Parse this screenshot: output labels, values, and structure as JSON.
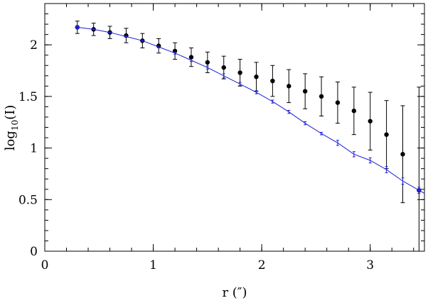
{
  "chart_data": {
    "type": "scatter",
    "xlabel": "r (″)",
    "ylabel": {
      "prefix": "log",
      "sub": "10",
      "suffix": "(I)"
    },
    "xlim": [
      0,
      3.5
    ],
    "ylim": [
      0,
      2.4
    ],
    "x_ticks": [
      0,
      1,
      2,
      3
    ],
    "y_ticks": [
      0,
      0.5,
      1,
      1.5,
      2
    ],
    "x_tick_labels": [
      "0",
      "1",
      "2",
      "3"
    ],
    "y_tick_labels": [
      "0",
      "0.5",
      "1",
      "1.5",
      "2"
    ],
    "x_minor_step": 0.2,
    "y_minor_step": 0.1,
    "grid": false,
    "series": [
      {
        "style": "points-with-errorbars",
        "color": "#000000",
        "points": [
          {
            "x": 0.3,
            "y": 2.17,
            "err": 0.06
          },
          {
            "x": 0.45,
            "y": 2.15,
            "err": 0.06
          },
          {
            "x": 0.6,
            "y": 2.12,
            "err": 0.06
          },
          {
            "x": 0.75,
            "y": 2.09,
            "err": 0.07
          },
          {
            "x": 0.9,
            "y": 2.04,
            "err": 0.07
          },
          {
            "x": 1.05,
            "y": 1.99,
            "err": 0.07
          },
          {
            "x": 1.2,
            "y": 1.94,
            "err": 0.08
          },
          {
            "x": 1.35,
            "y": 1.88,
            "err": 0.09
          },
          {
            "x": 1.5,
            "y": 1.83,
            "err": 0.1
          },
          {
            "x": 1.65,
            "y": 1.78,
            "err": 0.11
          },
          {
            "x": 1.8,
            "y": 1.73,
            "err": 0.13
          },
          {
            "x": 1.95,
            "y": 1.69,
            "err": 0.14
          },
          {
            "x": 2.1,
            "y": 1.65,
            "err": 0.15
          },
          {
            "x": 2.25,
            "y": 1.6,
            "err": 0.16
          },
          {
            "x": 2.4,
            "y": 1.55,
            "err": 0.17
          },
          {
            "x": 2.55,
            "y": 1.5,
            "err": 0.19
          },
          {
            "x": 2.7,
            "y": 1.44,
            "err": 0.2
          },
          {
            "x": 2.85,
            "y": 1.36,
            "err": 0.23
          },
          {
            "x": 3.0,
            "y": 1.26,
            "err": 0.28
          },
          {
            "x": 3.15,
            "y": 1.13,
            "err": 0.33
          },
          {
            "x": 3.3,
            "y": 0.94,
            "err": 0.47
          },
          {
            "x": 3.45,
            "y": 0.59,
            "err": 1.0
          }
        ]
      },
      {
        "style": "line-with-errorbars",
        "color": "#1f1fd6",
        "points": [
          {
            "x": 0.3,
            "y": 2.17,
            "err": 0.005
          },
          {
            "x": 0.45,
            "y": 2.15,
            "err": 0.005
          },
          {
            "x": 0.6,
            "y": 2.12,
            "err": 0.006
          },
          {
            "x": 0.75,
            "y": 2.08,
            "err": 0.008
          },
          {
            "x": 0.9,
            "y": 2.04,
            "err": 0.008
          },
          {
            "x": 1.05,
            "y": 1.98,
            "err": 0.01
          },
          {
            "x": 1.2,
            "y": 1.92,
            "err": 0.01
          },
          {
            "x": 1.35,
            "y": 1.85,
            "err": 0.012
          },
          {
            "x": 1.5,
            "y": 1.78,
            "err": 0.015
          },
          {
            "x": 1.65,
            "y": 1.7,
            "err": 0.02
          },
          {
            "x": 1.8,
            "y": 1.62,
            "err": 0.015
          },
          {
            "x": 1.95,
            "y": 1.54,
            "err": 0.015
          },
          {
            "x": 2.1,
            "y": 1.45,
            "err": 0.015
          },
          {
            "x": 2.25,
            "y": 1.35,
            "err": 0.015
          },
          {
            "x": 2.4,
            "y": 1.24,
            "err": 0.015
          },
          {
            "x": 2.55,
            "y": 1.14,
            "err": 0.012
          },
          {
            "x": 2.7,
            "y": 1.05,
            "err": 0.025
          },
          {
            "x": 2.85,
            "y": 0.94,
            "err": 0.025
          },
          {
            "x": 3.0,
            "y": 0.88,
            "err": 0.025
          },
          {
            "x": 3.15,
            "y": 0.79,
            "err": 0.03
          },
          {
            "x": 3.3,
            "y": 0.68,
            "err": 0.03
          },
          {
            "x": 3.45,
            "y": 0.59,
            "err": 0.03
          },
          {
            "x": 3.5,
            "y": 0.56,
            "err": 0
          }
        ]
      }
    ]
  }
}
